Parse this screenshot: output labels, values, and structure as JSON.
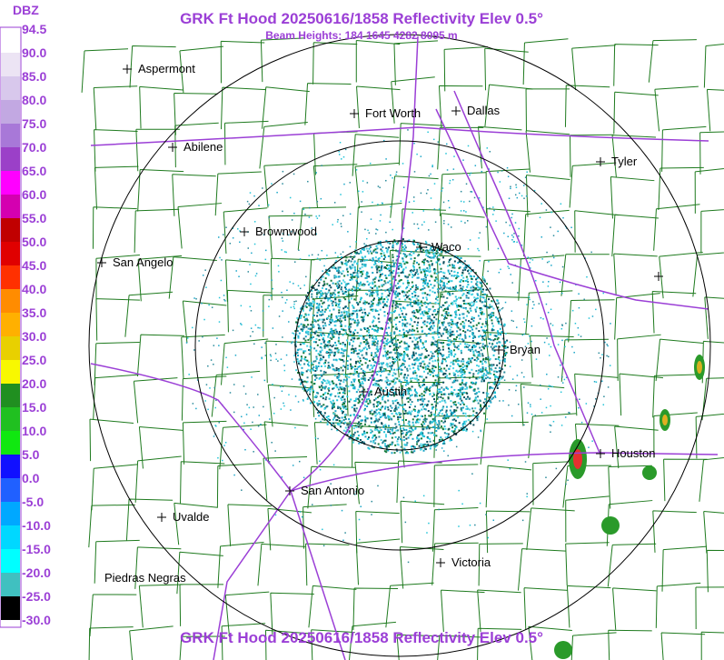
{
  "header": {
    "title": "GRK Ft Hood 20250616/1858 Reflectivity Elev 0.5°",
    "subtitle": "Beam Heights: 184 1645 4282 8095 m"
  },
  "legend": {
    "unit": "DBZ",
    "labels": [
      "94.5",
      "90.0",
      "85.0",
      "80.0",
      "75.0",
      "70.0",
      "65.0",
      "60.0",
      "55.0",
      "50.0",
      "45.0",
      "40.0",
      "35.0",
      "30.0",
      "25.0",
      "20.0",
      "15.0",
      "10.0",
      "5.0",
      "0.0",
      "-5.0",
      "-10.0",
      "-15.0",
      "-20.0",
      "-25.0",
      "-30.0"
    ]
  },
  "cities": [
    {
      "name": "Aspermont"
    },
    {
      "name": "Fort Worth"
    },
    {
      "name": "Dallas"
    },
    {
      "name": "Abilene"
    },
    {
      "name": "Tyler"
    },
    {
      "name": "Brownwood"
    },
    {
      "name": "Waco"
    },
    {
      "name": "San Angelo"
    },
    {
      "name": "Bryan"
    },
    {
      "name": "Austin"
    },
    {
      "name": "Houston"
    },
    {
      "name": "San Antonio"
    },
    {
      "name": "Uvalde"
    },
    {
      "name": "Victoria"
    },
    {
      "name": "Piedras Negras"
    }
  ],
  "footer": {
    "title": "GRK Ft Hood 20250616/1858 Reflectivity Elev 0.5°"
  }
}
